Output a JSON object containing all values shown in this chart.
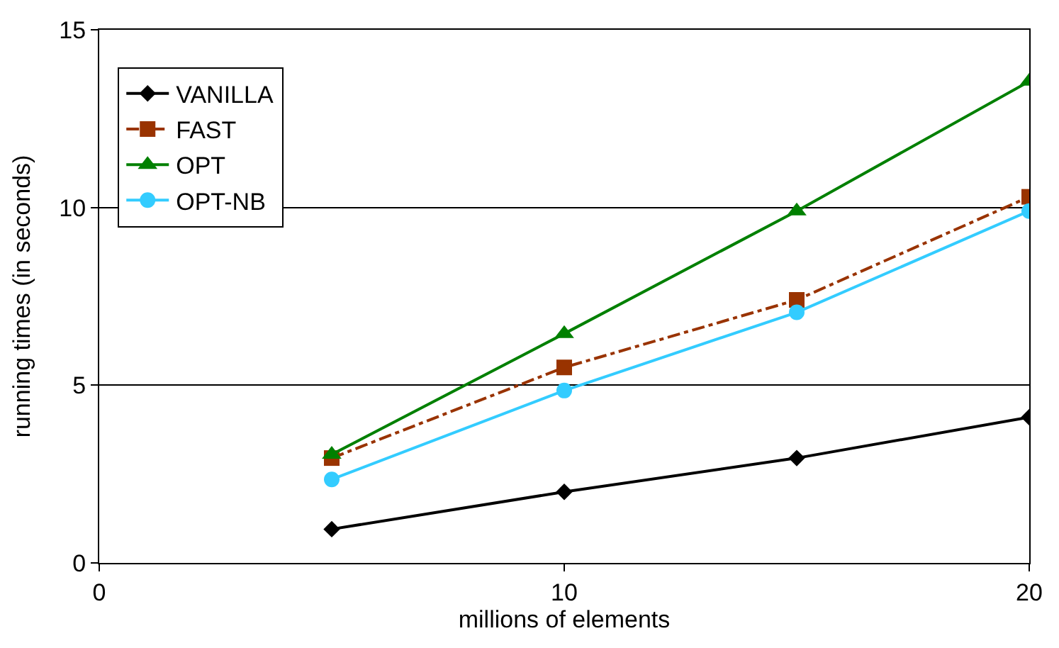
{
  "chart_data": {
    "type": "line",
    "xlabel": "millions of elements",
    "ylabel": "running times (in seconds)",
    "x": [
      5,
      10,
      15,
      20
    ],
    "series": [
      {
        "name": "VANILLA",
        "color": "#000000",
        "marker": "diamond",
        "line_style": "solid",
        "values": [
          0.95,
          2.0,
          2.95,
          4.1
        ]
      },
      {
        "name": "FAST",
        "color": "#993300",
        "marker": "square",
        "line_style": "dashdot",
        "values": [
          2.95,
          5.5,
          7.4,
          10.3
        ]
      },
      {
        "name": "OPT",
        "color": "#008000",
        "marker": "triangle",
        "line_style": "solid",
        "values": [
          3.05,
          6.45,
          9.9,
          13.55
        ]
      },
      {
        "name": "OPT-NB",
        "color": "#33ccff",
        "marker": "circle",
        "line_style": "solid",
        "values": [
          2.35,
          4.85,
          7.05,
          9.9
        ]
      }
    ],
    "xlim": [
      0,
      20
    ],
    "xticks": [
      0,
      10,
      20
    ],
    "ylim": [
      0,
      15
    ],
    "yticks": [
      0,
      5,
      10,
      15
    ],
    "grid": "y",
    "legend": "top left"
  }
}
